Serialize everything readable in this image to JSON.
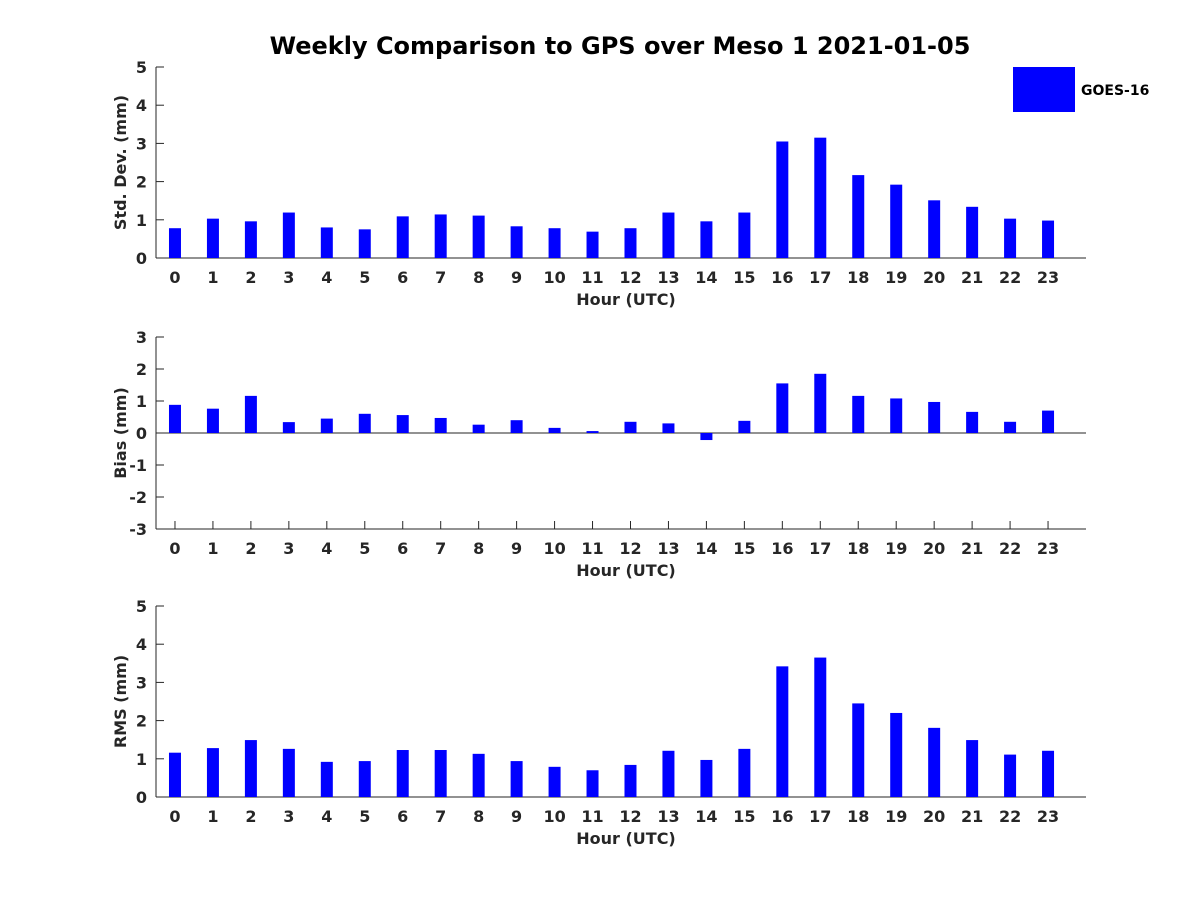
{
  "chart_data": {
    "type": "bar",
    "title": "Weekly Comparison to GPS over Meso 1 2021-01-05",
    "colors": {
      "series": "#0000ff",
      "axis": "#262626"
    },
    "legend": {
      "entries": [
        "GOES-16"
      ],
      "position": "top-right"
    },
    "categories": [
      "0",
      "1",
      "2",
      "3",
      "4",
      "5",
      "6",
      "7",
      "8",
      "9",
      "10",
      "11",
      "12",
      "13",
      "14",
      "15",
      "16",
      "17",
      "18",
      "19",
      "20",
      "21",
      "22",
      "23"
    ],
    "panels": [
      {
        "id": "std",
        "ylabel": "Std. Dev. (mm)",
        "xlabel": "Hour (UTC)",
        "ylim": [
          0,
          5
        ],
        "yticks": [
          "0",
          "1",
          "2",
          "3",
          "4",
          "5"
        ],
        "series": [
          {
            "name": "GOES-16",
            "values": [
              0.78,
              1.03,
              0.96,
              1.19,
              0.8,
              0.75,
              1.09,
              1.14,
              1.11,
              0.83,
              0.78,
              0.69,
              0.78,
              1.19,
              0.96,
              1.19,
              3.05,
              3.15,
              2.17,
              1.92,
              1.51,
              1.34,
              1.03,
              0.98
            ]
          }
        ]
      },
      {
        "id": "bias",
        "ylabel": "Bias (mm)",
        "xlabel": "Hour (UTC)",
        "ylim": [
          -3,
          3
        ],
        "yticks": [
          "-3",
          "-2",
          "-1",
          "0",
          "1",
          "2",
          "3"
        ],
        "series": [
          {
            "name": "GOES-16",
            "values": [
              0.88,
              0.76,
              1.16,
              0.34,
              0.45,
              0.6,
              0.56,
              0.47,
              0.26,
              0.4,
              0.16,
              0.06,
              0.35,
              0.3,
              -0.22,
              0.38,
              1.55,
              1.85,
              1.16,
              1.08,
              0.97,
              0.66,
              0.35,
              0.7
            ]
          }
        ]
      },
      {
        "id": "rms",
        "ylabel": "RMS (mm)",
        "xlabel": "Hour (UTC)",
        "ylim": [
          0,
          5
        ],
        "yticks": [
          "0",
          "1",
          "2",
          "3",
          "4",
          "5"
        ],
        "series": [
          {
            "name": "GOES-16",
            "values": [
              1.16,
              1.28,
              1.49,
              1.26,
              0.92,
              0.94,
              1.23,
              1.23,
              1.13,
              0.94,
              0.79,
              0.7,
              0.84,
              1.21,
              0.97,
              1.26,
              3.42,
              3.65,
              2.45,
              2.2,
              1.81,
              1.49,
              1.11,
              1.21
            ]
          }
        ]
      }
    ]
  }
}
